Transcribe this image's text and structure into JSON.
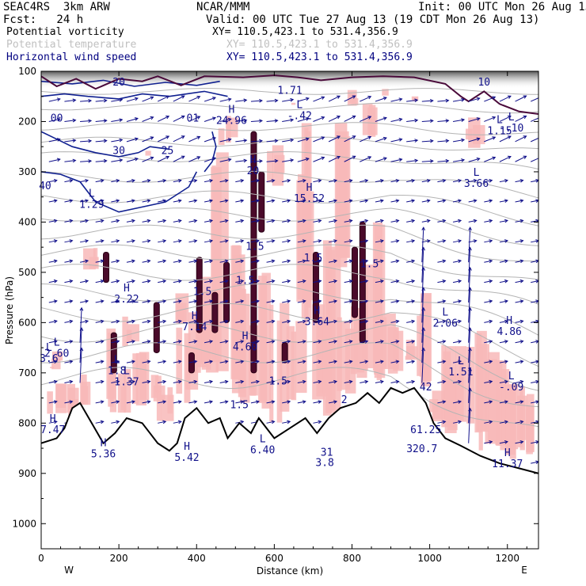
{
  "header": {
    "model": "SEAC4RS  3km ARW",
    "forecast": "Fcst:   24 h",
    "center": "NCAR/MMM",
    "init": "Init: 00 UTC Mon 26 Aug 13",
    "valid": "Valid: 00 UTC Tue 27 Aug 13 (19 CDT Mon 26 Aug 13)",
    "fields": [
      {
        "label": "Potential vorticity",
        "xy": "XY= 110.5,423.1 to 531.4,356.9",
        "color": "#000000"
      },
      {
        "label": "Potential temperature",
        "xy": "XY= 110.5,423.1 to 531.4,356.9",
        "color": "#c8c8c8"
      },
      {
        "label": "Horizontal wind speed",
        "xy": "XY= 110.5,423.1 to 531.4,356.9",
        "color": "#000080"
      }
    ]
  },
  "chart_data": {
    "type": "cross-section",
    "xlabel": "Distance (km)",
    "ylabel": "Pressure (hPa)",
    "xlim": [
      0,
      1280
    ],
    "ylim": [
      1050,
      100
    ],
    "x_ticks": [
      0,
      200,
      400,
      600,
      800,
      1000,
      1200
    ],
    "y_ticks": [
      100,
      200,
      300,
      400,
      500,
      600,
      700,
      800,
      900,
      1000
    ],
    "left_end": "W",
    "right_end": "E",
    "terrain": [
      [
        0,
        840
      ],
      [
        40,
        830
      ],
      [
        60,
        810
      ],
      [
        80,
        770
      ],
      [
        100,
        760
      ],
      [
        130,
        800
      ],
      [
        160,
        840
      ],
      [
        190,
        820
      ],
      [
        220,
        790
      ],
      [
        260,
        800
      ],
      [
        300,
        840
      ],
      [
        330,
        855
      ],
      [
        350,
        840
      ],
      [
        370,
        790
      ],
      [
        400,
        770
      ],
      [
        430,
        800
      ],
      [
        460,
        790
      ],
      [
        480,
        830
      ],
      [
        510,
        800
      ],
      [
        540,
        820
      ],
      [
        560,
        790
      ],
      [
        600,
        830
      ],
      [
        640,
        810
      ],
      [
        680,
        790
      ],
      [
        710,
        820
      ],
      [
        740,
        790
      ],
      [
        770,
        770
      ],
      [
        810,
        760
      ],
      [
        840,
        740
      ],
      [
        870,
        760
      ],
      [
        900,
        730
      ],
      [
        930,
        740
      ],
      [
        960,
        730
      ],
      [
        990,
        760
      ],
      [
        1010,
        800
      ],
      [
        1040,
        830
      ],
      [
        1080,
        845
      ],
      [
        1130,
        865
      ],
      [
        1180,
        880
      ],
      [
        1230,
        890
      ],
      [
        1280,
        900
      ]
    ],
    "theta_contour_labels": [
      {
        "x": 40,
        "p": 200,
        "text": "00"
      },
      {
        "x": 200,
        "p": 128,
        "text": "20"
      },
      {
        "x": 390,
        "p": 200,
        "text": "01"
      },
      {
        "x": 200,
        "p": 265,
        "text": "30"
      },
      {
        "x": 325,
        "p": 265,
        "text": "25"
      },
      {
        "x": 10,
        "p": 335,
        "text": "40"
      },
      {
        "x": 1140,
        "p": 128,
        "text": "10"
      }
    ],
    "extrema": [
      {
        "type": "H",
        "x": 490,
        "p": 205,
        "value": "24.96"
      },
      {
        "type": "L",
        "x": 665,
        "p": 195,
        "value": "-.42"
      },
      {
        "type": "H",
        "x": 545,
        "p": 305,
        "value": "20"
      },
      {
        "type": "H",
        "x": 690,
        "p": 360,
        "value": "15.52"
      },
      {
        "type": "L",
        "x": 130,
        "p": 372,
        "value": "1.29"
      },
      {
        "type": "L",
        "x": 1120,
        "p": 330,
        "value": "3.66"
      },
      {
        "type": "L",
        "x": 1210,
        "p": 220,
        "value": "-.10"
      },
      {
        "type": "L",
        "x": 1180,
        "p": 225,
        "value": "1.15"
      },
      {
        "type": "H",
        "x": 220,
        "p": 560,
        "value": "2.22"
      },
      {
        "type": "H",
        "x": 395,
        "p": 615,
        "value": "7.14"
      },
      {
        "type": "H",
        "x": 710,
        "p": 605,
        "value": "3.64"
      },
      {
        "type": "H",
        "x": 525,
        "p": 655,
        "value": "4.60"
      },
      {
        "type": "H",
        "x": 1205,
        "p": 625,
        "value": "4.86"
      },
      {
        "type": "L",
        "x": 1040,
        "p": 608,
        "value": "2.06"
      },
      {
        "type": "L",
        "x": 40,
        "p": 668,
        "value": "2.60"
      },
      {
        "type": "L",
        "x": 20,
        "p": 678,
        "value": "3.6"
      },
      {
        "type": "L",
        "x": 195,
        "p": 703,
        "value": "1.8"
      },
      {
        "type": "L",
        "x": 220,
        "p": 725,
        "value": "1.37"
      },
      {
        "type": "L",
        "x": 1080,
        "p": 705,
        "value": "1.51"
      },
      {
        "type": "L",
        "x": 1210,
        "p": 735,
        "value": "-.09"
      },
      {
        "type": "H",
        "x": 30,
        "p": 820,
        "value": "7.47"
      },
      {
        "type": "H",
        "x": 160,
        "p": 868,
        "value": "5.36"
      },
      {
        "type": "H",
        "x": 375,
        "p": 875,
        "value": "5.42"
      },
      {
        "type": "L",
        "x": 570,
        "p": 860,
        "value": "6.40"
      },
      {
        "type": "H",
        "x": 1200,
        "p": 888,
        "value": "11.37"
      }
    ],
    "misc_labels": [
      {
        "x": 640,
        "p": 145,
        "text": "1.71"
      },
      {
        "x": 415,
        "p": 545,
        "text": "1.5"
      },
      {
        "x": 525,
        "p": 523,
        "text": "1.5"
      },
      {
        "x": 550,
        "p": 455,
        "text": "1.5"
      },
      {
        "x": 700,
        "p": 478,
        "text": "1.5"
      },
      {
        "x": 845,
        "p": 490,
        "text": "1.5"
      },
      {
        "x": 610,
        "p": 723,
        "text": "1.5"
      },
      {
        "x": 510,
        "p": 770,
        "text": "1.5"
      },
      {
        "x": 780,
        "p": 760,
        "text": "2"
      },
      {
        "x": 990,
        "p": 735,
        "text": "42"
      },
      {
        "x": 990,
        "p": 820,
        "text": "61.25"
      },
      {
        "x": 980,
        "p": 858,
        "text": "320.7"
      },
      {
        "x": 735,
        "p": 865,
        "text": "31"
      },
      {
        "x": 730,
        "p": 885,
        "text": "3.8"
      }
    ],
    "legend": "none",
    "grid": false
  }
}
